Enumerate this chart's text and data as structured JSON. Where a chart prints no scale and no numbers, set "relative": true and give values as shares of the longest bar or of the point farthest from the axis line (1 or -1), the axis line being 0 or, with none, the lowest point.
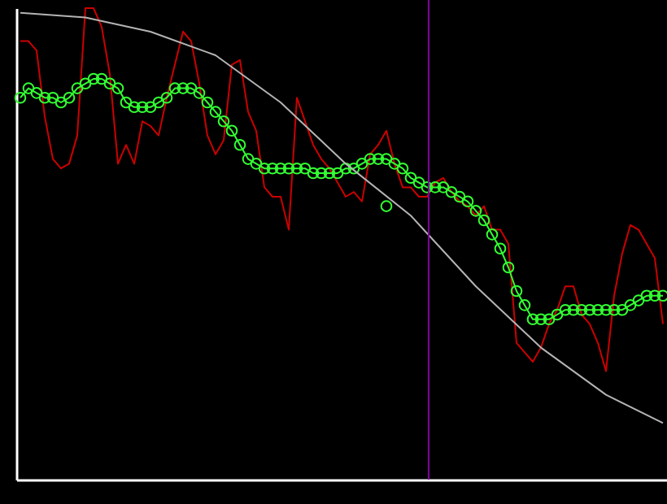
{
  "chart_data": {
    "type": "line",
    "relative": true,
    "categories": [
      null,
      null,
      null,
      null,
      null,
      null,
      null,
      null,
      null,
      null,
      null,
      null,
      null,
      null,
      null,
      null,
      null,
      null,
      null,
      null,
      null,
      null,
      null,
      null,
      null,
      null,
      null,
      null,
      null,
      null,
      null,
      null,
      null,
      null,
      null,
      null,
      null,
      null,
      null,
      null,
      null,
      null,
      null,
      null,
      null,
      null,
      null,
      null,
      null,
      null,
      null,
      null,
      null,
      null,
      null,
      null,
      null,
      null,
      null,
      null,
      null,
      null,
      null,
      null,
      null,
      null,
      null,
      null,
      null,
      null,
      null,
      null,
      null,
      null,
      null,
      null,
      null,
      null,
      null,
      null
    ],
    "series": [
      {
        "color": "#cc0000",
        "values": [
          0.93,
          0.93,
          0.91,
          0.77,
          0.68,
          0.66,
          0.67,
          0.73,
          1.0,
          1.0,
          0.96,
          0.86,
          0.67,
          0.71,
          0.67,
          0.76,
          0.75,
          0.73,
          0.81,
          0.88,
          0.95,
          0.93,
          0.84,
          0.73,
          0.69,
          0.72,
          0.88,
          0.89,
          0.78,
          0.74,
          0.62,
          0.6,
          0.6,
          0.53,
          0.81,
          0.76,
          0.71,
          0.68,
          0.66,
          0.63,
          0.6,
          0.61,
          0.59,
          0.69,
          0.71,
          0.74,
          0.67,
          0.62,
          0.62,
          0.6,
          0.6,
          0.63,
          0.64,
          0.61,
          0.59,
          0.58,
          0.56,
          0.58,
          0.53,
          0.53,
          0.5,
          0.29,
          0.27,
          0.25,
          0.28,
          0.33,
          0.36,
          0.41,
          0.41,
          0.35,
          0.33,
          0.29,
          0.23,
          0.39,
          0.48,
          0.54,
          0.53,
          0.5,
          0.47,
          0.33
        ]
      },
      {
        "marker": "circle",
        "color": "#33ff33",
        "values": [
          0.81,
          0.83,
          0.82,
          0.81,
          0.81,
          0.8,
          0.81,
          0.83,
          0.84,
          0.85,
          0.85,
          0.84,
          0.83,
          0.8,
          0.79,
          0.79,
          0.79,
          0.8,
          0.81,
          0.83,
          0.83,
          0.83,
          0.82,
          0.8,
          0.78,
          0.76,
          0.74,
          0.71,
          0.68,
          0.67,
          0.66,
          0.66,
          0.66,
          0.66,
          0.66,
          0.66,
          0.65,
          0.65,
          0.65,
          0.65,
          0.66,
          0.66,
          0.67,
          0.68,
          0.68,
          0.68,
          0.67,
          0.66,
          0.64,
          0.63,
          0.62,
          0.62,
          0.62,
          0.61,
          0.6,
          0.59,
          0.57,
          0.55,
          0.52,
          0.49,
          0.45,
          0.4,
          0.37,
          0.34,
          0.34,
          0.34,
          0.35,
          0.36,
          0.36,
          0.36,
          0.36,
          0.36,
          0.36,
          0.36,
          0.36,
          0.37,
          0.38,
          0.39,
          0.39,
          0.39
        ]
      },
      {
        "marker": "circle",
        "color": "#33ff33",
        "values": [
          null,
          null,
          null,
          null,
          null,
          null,
          null,
          null,
          null,
          null,
          null,
          null,
          null,
          null,
          null,
          null,
          null,
          null,
          null,
          null,
          null,
          null,
          null,
          null,
          null,
          null,
          null,
          null,
          null,
          null,
          null,
          null,
          null,
          null,
          null,
          null,
          null,
          null,
          null,
          null,
          null,
          null,
          null,
          null,
          null,
          0.58,
          null,
          null,
          null,
          null,
          null,
          null,
          null,
          null,
          null,
          null,
          null,
          null,
          null,
          null,
          null,
          null,
          null,
          null,
          null,
          null,
          null,
          null,
          null,
          null,
          null,
          null,
          null,
          null,
          null,
          null,
          null,
          null,
          null,
          null
        ]
      },
      {
        "color": "#b4b4b4",
        "values": [
          0.99,
          null,
          null,
          null,
          null,
          null,
          null,
          null,
          0.98,
          null,
          null,
          null,
          null,
          null,
          null,
          null,
          0.95,
          null,
          null,
          null,
          null,
          null,
          null,
          null,
          0.9,
          null,
          null,
          null,
          null,
          null,
          null,
          null,
          0.8,
          null,
          null,
          null,
          null,
          null,
          null,
          null,
          0.67,
          null,
          null,
          null,
          null,
          null,
          null,
          null,
          0.56,
          null,
          null,
          null,
          null,
          null,
          null,
          null,
          0.41,
          null,
          null,
          null,
          null,
          null,
          null,
          null,
          0.28,
          null,
          null,
          null,
          null,
          null,
          null,
          null,
          0.18,
          null,
          null,
          null,
          null,
          null,
          null,
          0.12
        ]
      }
    ]
  }
}
